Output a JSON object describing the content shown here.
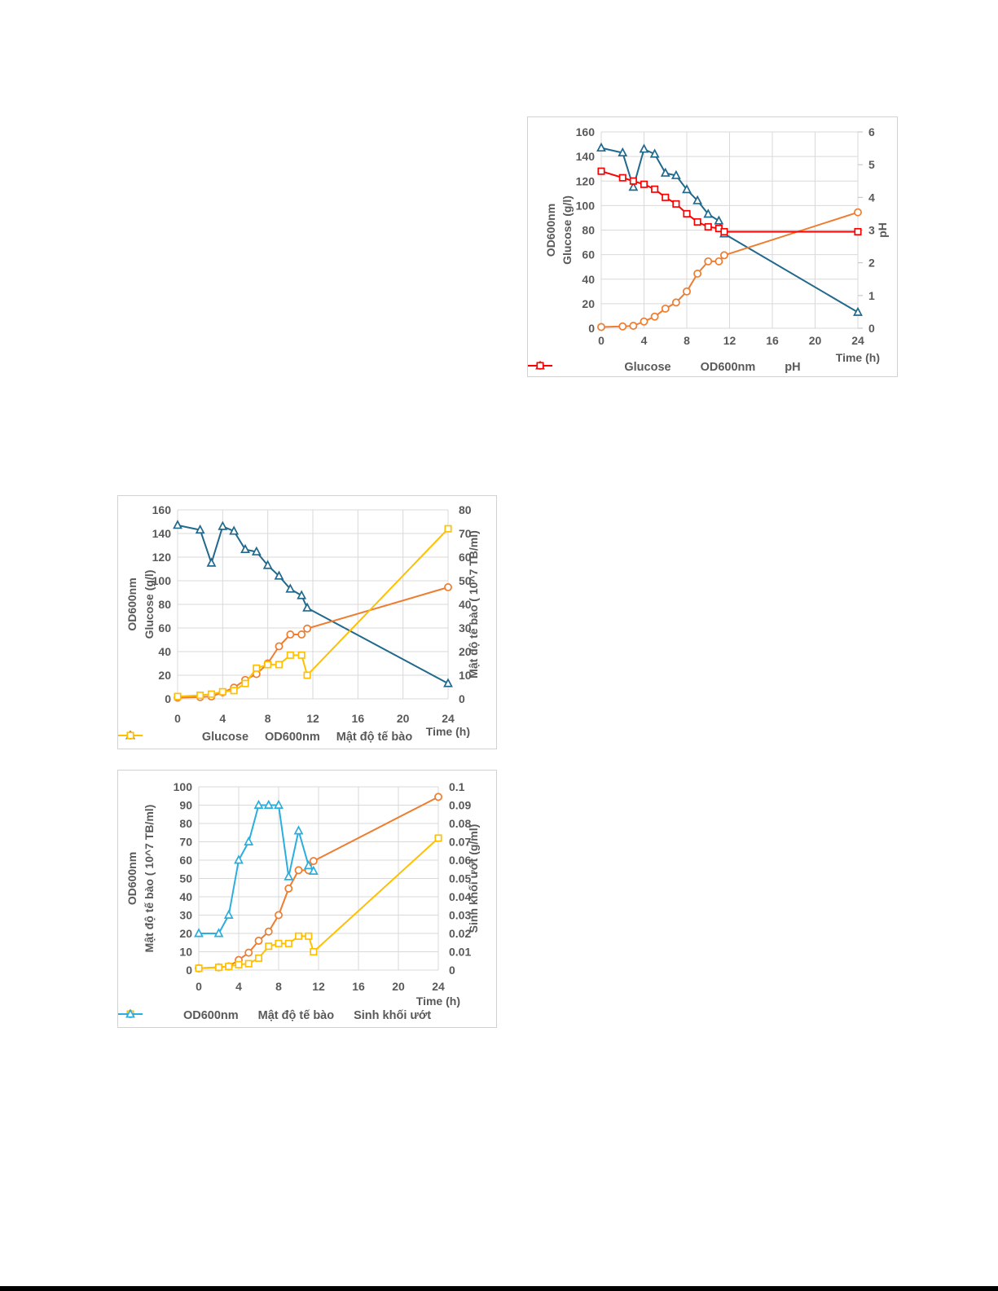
{
  "page": {
    "background": "#FFFFFF",
    "footer_bar_color": "#000000"
  },
  "style": {
    "grid_color": "#D9D9D9",
    "axis_text_color": "#595959",
    "box_border_color": "#D2D2D2",
    "marker_fill": "#FFFFFF",
    "glucose_color": "#20698C",
    "od600_color": "#ED7D31",
    "ph_color": "#FF0000",
    "cell_density_color": "#FFC000",
    "wet_biomass_color": "#2BAEDE"
  },
  "chart_data": [
    {
      "type": "line",
      "title": "",
      "xlabel": "Time (h)",
      "xlim": [
        0,
        24
      ],
      "x_ticks": [
        0,
        4,
        8,
        12,
        16,
        20,
        24
      ],
      "x": [
        0,
        2,
        3,
        4,
        5,
        6,
        7,
        8,
        9,
        10,
        11,
        11.5,
        24
      ],
      "grid": true,
      "legend_position": "bottom",
      "left_axis": {
        "title_lines": [
          "OD600nm",
          "Glucose (g/l)"
        ],
        "min": 0,
        "max": 160,
        "ticks": [
          0,
          20,
          40,
          60,
          80,
          100,
          120,
          140,
          160
        ]
      },
      "right_axis": {
        "title_lines": [
          "pH"
        ],
        "min": 0,
        "max": 6,
        "ticks": [
          0,
          1,
          2,
          3,
          4,
          5,
          6
        ],
        "tick_marks": true
      },
      "series": [
        {
          "name": "Glucose",
          "axis": "left",
          "marker": "triangle",
          "color": "#20698C",
          "values": [
            147,
            143,
            115,
            146,
            142,
            126.5,
            124.5,
            113,
            104,
            93,
            87.5,
            77,
            13
          ]
        },
        {
          "name": "OD600nm",
          "axis": "left",
          "marker": "circle",
          "color": "#ED7D31",
          "values": [
            1,
            1.5,
            2,
            5.5,
            9.5,
            16,
            21,
            30,
            44.5,
            54.5,
            54.5,
            59.5,
            94.5
          ]
        },
        {
          "name": "pH",
          "axis": "right",
          "marker": "square",
          "color": "#FF0000",
          "values": [
            4.8,
            4.6,
            4.5,
            4.4,
            4.25,
            4.0,
            3.8,
            3.5,
            3.25,
            3.1,
            3.05,
            2.95,
            2.95
          ]
        }
      ]
    },
    {
      "type": "line",
      "title": "",
      "xlabel": "Time (h)",
      "xlim": [
        0,
        24
      ],
      "x_ticks": [
        0,
        4,
        8,
        12,
        16,
        20,
        24
      ],
      "x": [
        0,
        2,
        3,
        4,
        5,
        6,
        7,
        8,
        9,
        10,
        11,
        11.5,
        24
      ],
      "grid": true,
      "legend_position": "bottom",
      "left_axis": {
        "title_lines": [
          "OD600nm",
          "Glucose (g/l)"
        ],
        "min": 0,
        "max": 160,
        "ticks": [
          0,
          20,
          40,
          60,
          80,
          100,
          120,
          140,
          160
        ]
      },
      "right_axis": {
        "title_lines": [
          "Mật độ tế bào ( 10^7 TB/ml)"
        ],
        "min": 0,
        "max": 80,
        "ticks": [
          0,
          10,
          20,
          30,
          40,
          50,
          60,
          70,
          80
        ],
        "tick_marks": false
      },
      "series": [
        {
          "name": "Glucose",
          "axis": "left",
          "marker": "triangle",
          "color": "#20698C",
          "values": [
            147,
            143,
            115,
            146,
            142,
            126.5,
            124.5,
            113,
            104,
            93,
            87.5,
            77,
            13
          ]
        },
        {
          "name": "OD600nm",
          "axis": "left",
          "marker": "circle",
          "color": "#ED7D31",
          "values": [
            1,
            1.5,
            2,
            5.5,
            9.5,
            16,
            21,
            30,
            44.5,
            54.5,
            54.5,
            59.5,
            94.5
          ]
        },
        {
          "name": "Mật độ tế bào",
          "axis": "right",
          "marker": "square",
          "color": "#FFC000",
          "values": [
            1,
            1.5,
            2,
            3,
            3.5,
            6.5,
            13,
            14.5,
            14.5,
            18.5,
            18.5,
            10,
            72
          ]
        }
      ]
    },
    {
      "type": "line",
      "title": "",
      "xlabel": "Time (h)",
      "xlim": [
        0,
        24
      ],
      "x_ticks": [
        0,
        4,
        8,
        12,
        16,
        20,
        24
      ],
      "x": [
        0,
        2,
        3,
        4,
        5,
        6,
        7,
        8,
        9,
        10,
        11,
        11.5,
        24
      ],
      "grid": true,
      "legend_position": "bottom",
      "left_axis": {
        "title_lines": [
          "OD600nm",
          "Mật độ tế bào ( 10^7 TB/ml)"
        ],
        "min": 0,
        "max": 100,
        "ticks": [
          0,
          10,
          20,
          30,
          40,
          50,
          60,
          70,
          80,
          90,
          100
        ]
      },
      "right_axis": {
        "title_lines": [
          "Sinh khối ướt (g/ml)"
        ],
        "min": 0,
        "max": 0.1,
        "ticks": [
          0,
          0.01,
          0.02,
          0.03,
          0.04,
          0.05,
          0.06,
          0.07,
          0.08,
          0.09,
          0.1
        ],
        "tick_marks": false
      },
      "series": [
        {
          "name": "OD600nm",
          "axis": "left",
          "marker": "circle",
          "color": "#ED7D31",
          "values": [
            1,
            1.5,
            2,
            5.5,
            9.5,
            16,
            21,
            30,
            44.5,
            54.5,
            54.5,
            59.5,
            94.5
          ]
        },
        {
          "name": "Mật độ tế bào",
          "axis": "left",
          "marker": "square",
          "color": "#FFC000",
          "values": [
            1,
            1.5,
            2,
            3,
            3.5,
            6.5,
            13,
            14.5,
            14.5,
            18.5,
            18.5,
            10,
            72
          ]
        },
        {
          "name": "Sinh khối ướt",
          "axis": "right",
          "marker": "triangle",
          "color": "#2BAEDE",
          "values": [
            0.02,
            0.02,
            0.03,
            0.06,
            0.07,
            0.09,
            0.09,
            0.09,
            0.051,
            0.076,
            0.057,
            0.054,
            null
          ]
        }
      ]
    }
  ]
}
